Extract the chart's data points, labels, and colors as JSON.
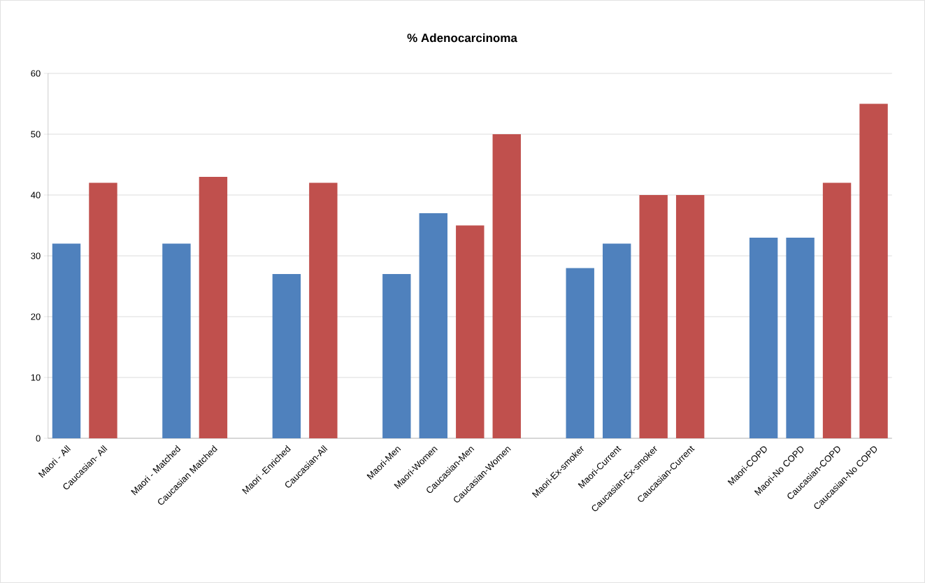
{
  "chart_data": {
    "type": "bar",
    "title": "% Adenocarcinoma",
    "categories": [
      "Maori - All",
      "Caucasian- All",
      null,
      "Maori - Matched",
      "Caucasian Matched",
      null,
      "Maori -Enriched",
      "Caucasian-All",
      null,
      "Maori-Men",
      "Maori-Women",
      "Caucasian-Men",
      "Caucasian-Women",
      null,
      "Maori-Ex-smoker",
      "Maori-Current",
      "Caucasian-Ex-smoker",
      "Caucasian-Current",
      null,
      "Maori-COPD",
      "Maori-No COPD",
      "Caucasian-COPD",
      "Caucasian-No COPD"
    ],
    "values": [
      32,
      42,
      null,
      32,
      43,
      null,
      27,
      42,
      null,
      27,
      37,
      35,
      50,
      null,
      28,
      32,
      40,
      40,
      null,
      33,
      33,
      42,
      55
    ],
    "colors": [
      "#4f81bd",
      "#c0504d",
      "#4f81bd",
      "#4f81bd",
      "#c0504d",
      "#4f81bd",
      "#4f81bd",
      "#c0504d",
      "#4f81bd",
      "#4f81bd",
      "#4f81bd",
      "#c0504d",
      "#c0504d",
      "#4f81bd",
      "#4f81bd",
      "#4f81bd",
      "#c0504d",
      "#c0504d",
      "#4f81bd",
      "#4f81bd",
      "#4f81bd",
      "#c0504d",
      "#c0504d"
    ],
    "ylim": [
      0,
      60
    ],
    "yticks": [
      0,
      10,
      20,
      30,
      40,
      50,
      60
    ],
    "grid": "y"
  }
}
